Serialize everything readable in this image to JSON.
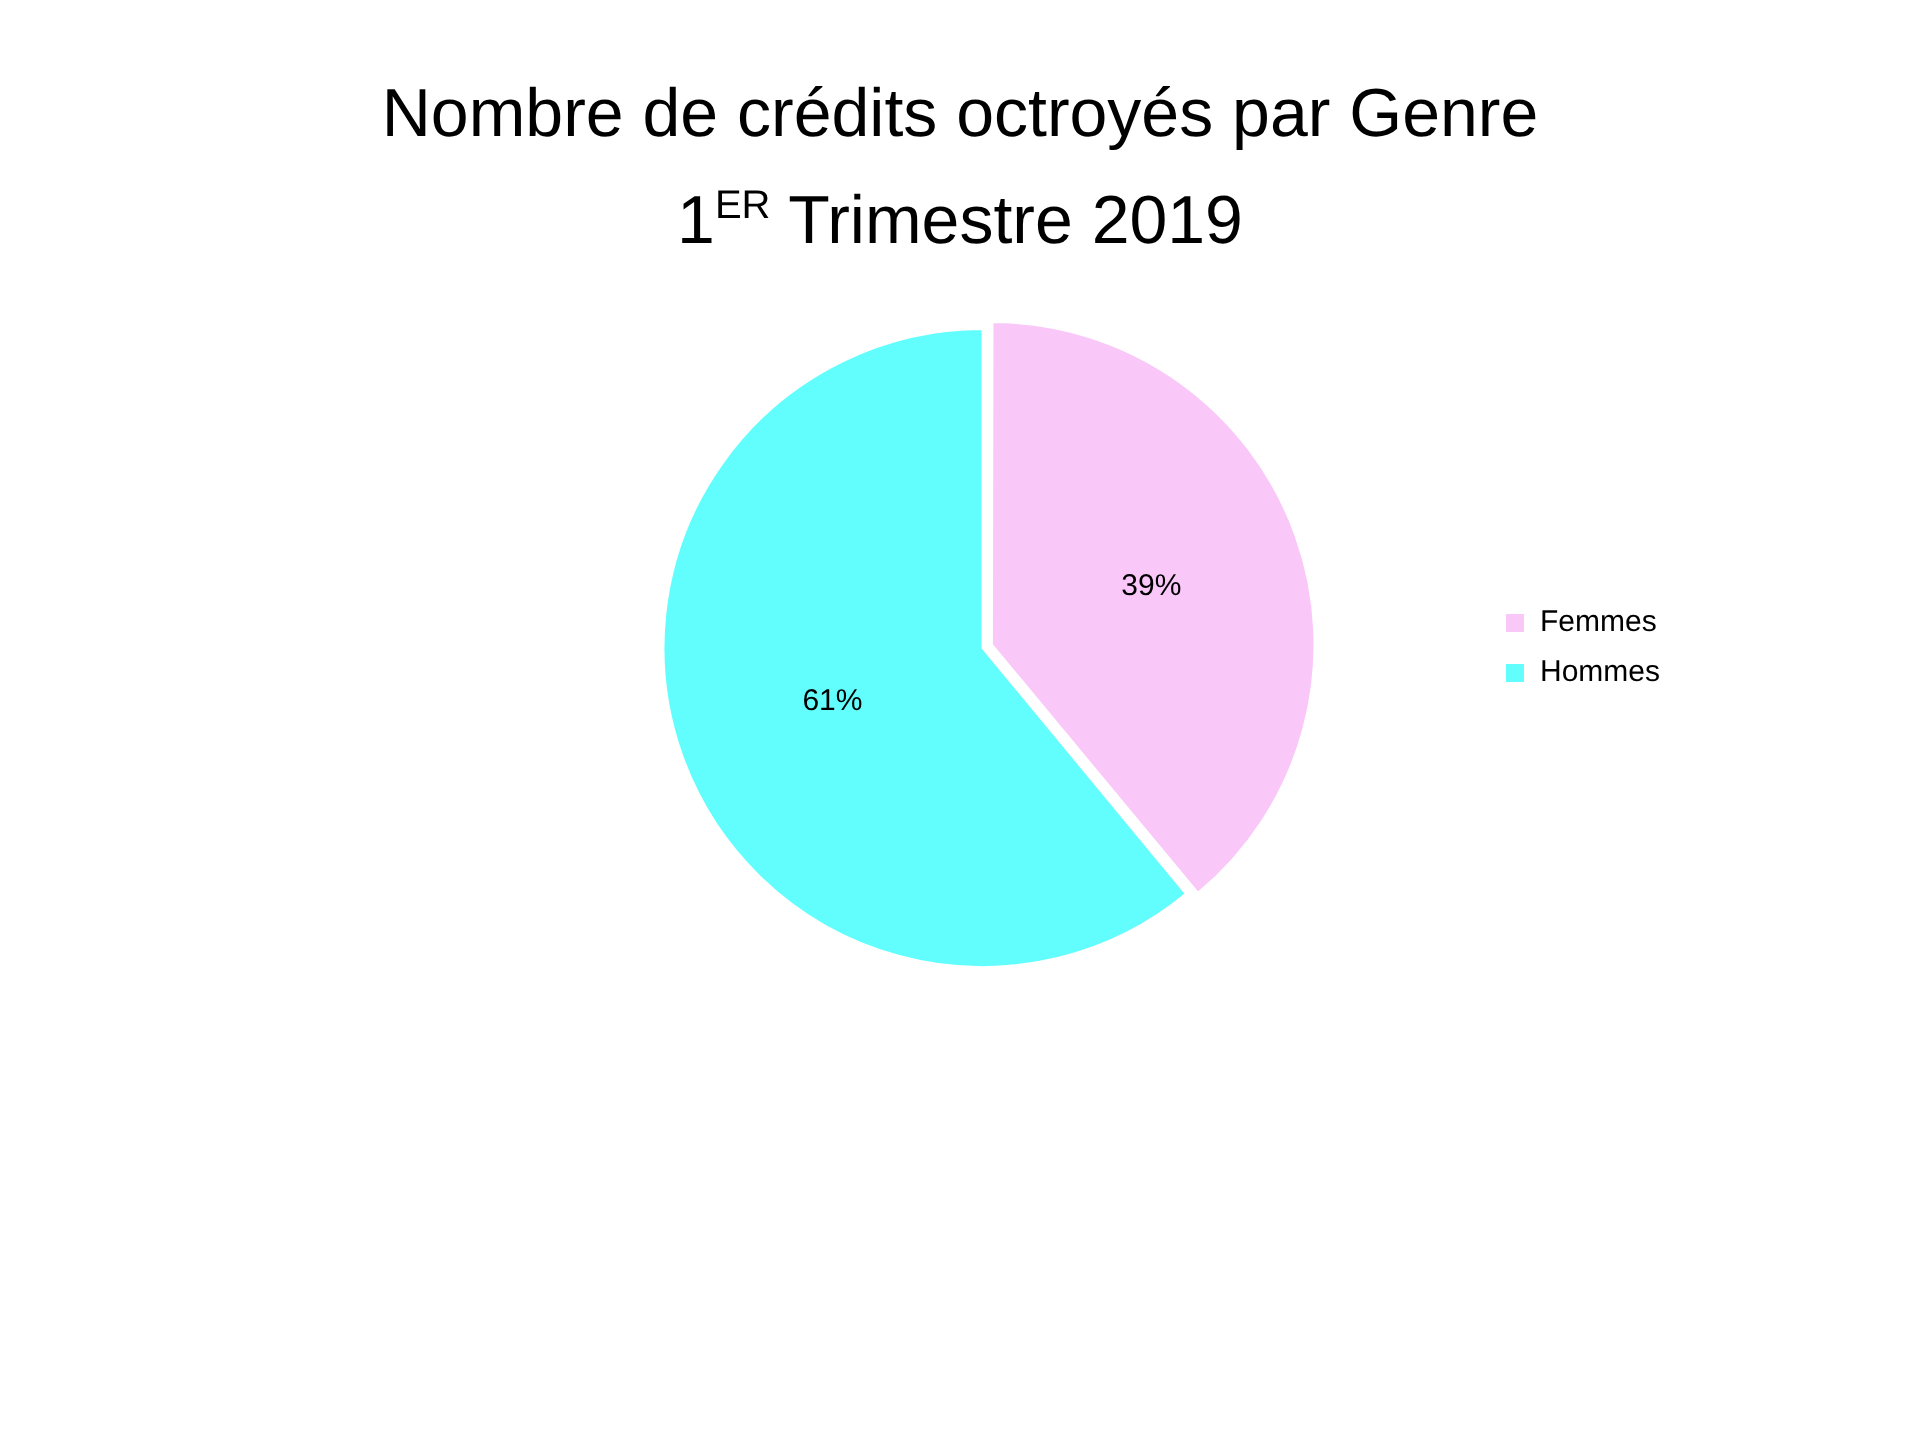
{
  "chart_data": {
    "type": "pie",
    "title": "Nombre de crédits octroyés par Genre",
    "subtitle": "1$^{ER}$ Trimestre 2019",
    "categories": [
      "Femmes",
      "Hommes"
    ],
    "values": [
      39,
      61
    ],
    "colors": [
      "#f9c8f9",
      "#62fefe"
    ],
    "value_labels": [
      "39%",
      "61%"
    ],
    "legend": "right"
  }
}
